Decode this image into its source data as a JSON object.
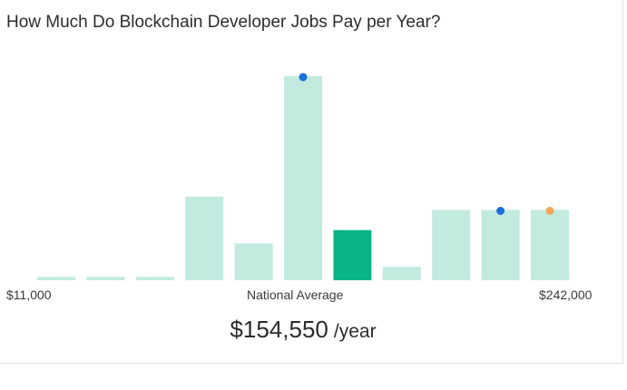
{
  "title": "How Much Do Blockchain Developer Jobs Pay per Year?",
  "chart_data": {
    "type": "bar",
    "title": "How Much Do Blockchain Developer Jobs Pay per Year?",
    "xlabel": "",
    "ylabel": "",
    "range_min_label": "$11,000",
    "range_max_label": "$242,000",
    "national_average_label": "National Average",
    "highlight_index": 6,
    "values": [
      1,
      1,
      1,
      25,
      11,
      61,
      15,
      4,
      21,
      21,
      21
    ],
    "ylim": [
      0,
      61
    ],
    "markers": [
      {
        "bar": 5,
        "color": "#1a6fdc"
      },
      {
        "bar": 9,
        "color": "#1a6fdc"
      },
      {
        "bar": 10,
        "color": "#f6a65a"
      }
    ],
    "bar_color": "#c2eadf",
    "highlight_color": "#0bb486",
    "grid": false,
    "legend": "none"
  },
  "salary": {
    "amount": "$154,550",
    "unit": "/year"
  }
}
